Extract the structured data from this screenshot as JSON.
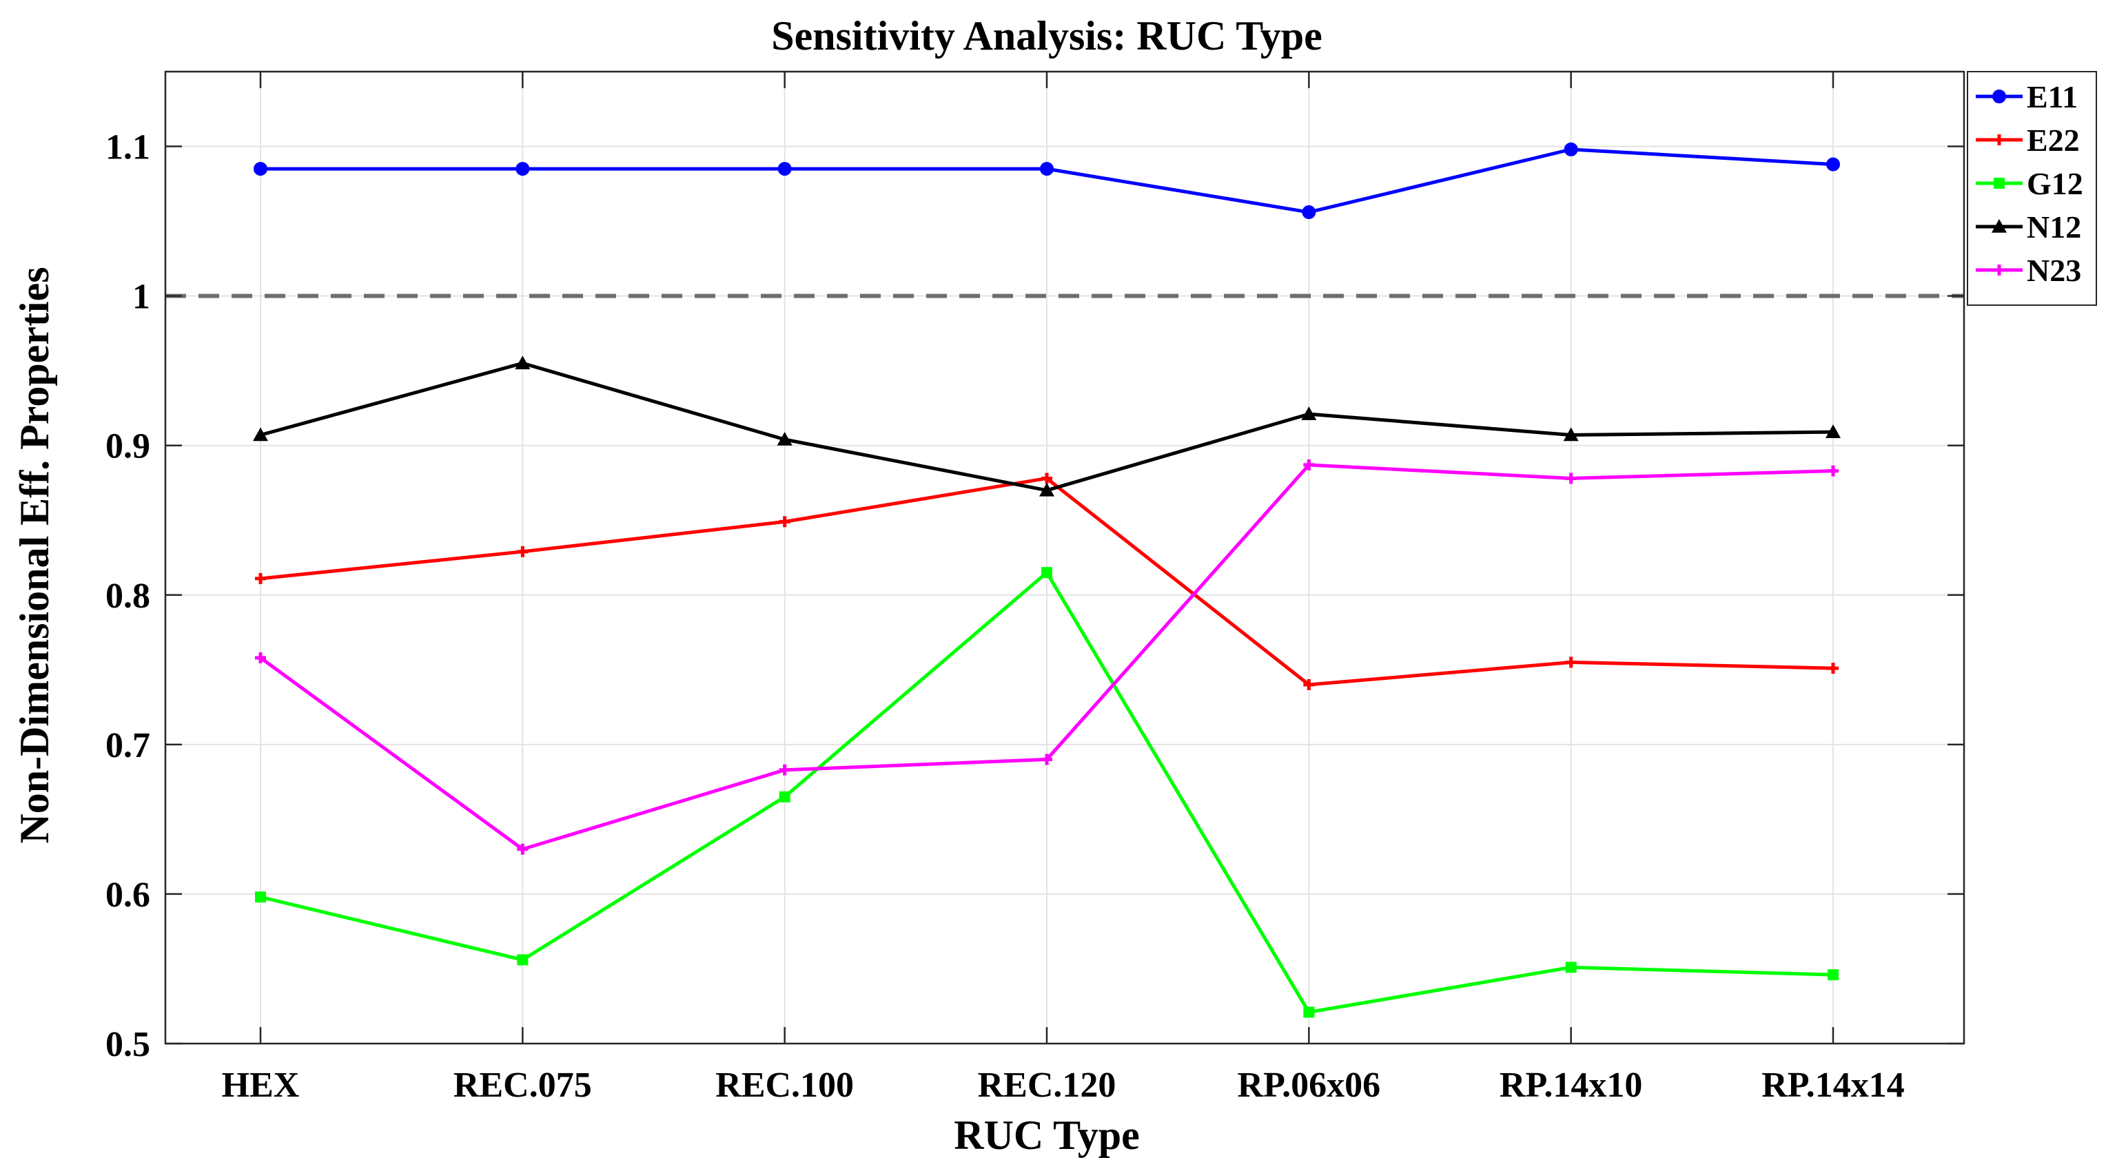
{
  "chart_data": {
    "type": "line",
    "title": "Sensitivity Analysis: RUC Type",
    "xlabel": "RUC Type",
    "ylabel": "Non-Dimensional Eff. Properties",
    "categories": [
      "HEX",
      "REC.075",
      "REC.100",
      "REC.120",
      "RP.06x06",
      "RP.14x10",
      "RP.14x14"
    ],
    "ylim": [
      0.5,
      1.15
    ],
    "yticks": [
      0.5,
      0.6,
      0.7,
      0.8,
      0.9,
      1,
      1.1
    ],
    "ytick_labels": [
      "0.5",
      "0.6",
      "0.7",
      "0.8",
      "0.9",
      "1",
      "1.1"
    ],
    "grid": true,
    "reference_line": {
      "y": 1,
      "style": "dashed",
      "color": "#6e6e6e"
    },
    "legend_position": "top-right",
    "series": [
      {
        "name": "E11",
        "color": "#0000ff",
        "marker": "circle",
        "values": [
          1.085,
          1.085,
          1.085,
          1.085,
          1.056,
          1.098,
          1.088
        ]
      },
      {
        "name": "E22",
        "color": "#ff0000",
        "marker": "plus",
        "values": [
          0.811,
          0.829,
          0.849,
          0.878,
          0.74,
          0.755,
          0.751
        ]
      },
      {
        "name": "G12",
        "color": "#00ff00",
        "marker": "square",
        "values": [
          0.598,
          0.556,
          0.665,
          0.815,
          0.521,
          0.551,
          0.546
        ]
      },
      {
        "name": "N12",
        "color": "#000000",
        "marker": "triangle",
        "values": [
          0.907,
          0.955,
          0.904,
          0.87,
          0.921,
          0.907,
          0.909
        ]
      },
      {
        "name": "N23",
        "color": "#ff00ff",
        "marker": "plus",
        "values": [
          0.758,
          0.63,
          0.683,
          0.69,
          0.887,
          0.878,
          0.883
        ]
      }
    ]
  }
}
